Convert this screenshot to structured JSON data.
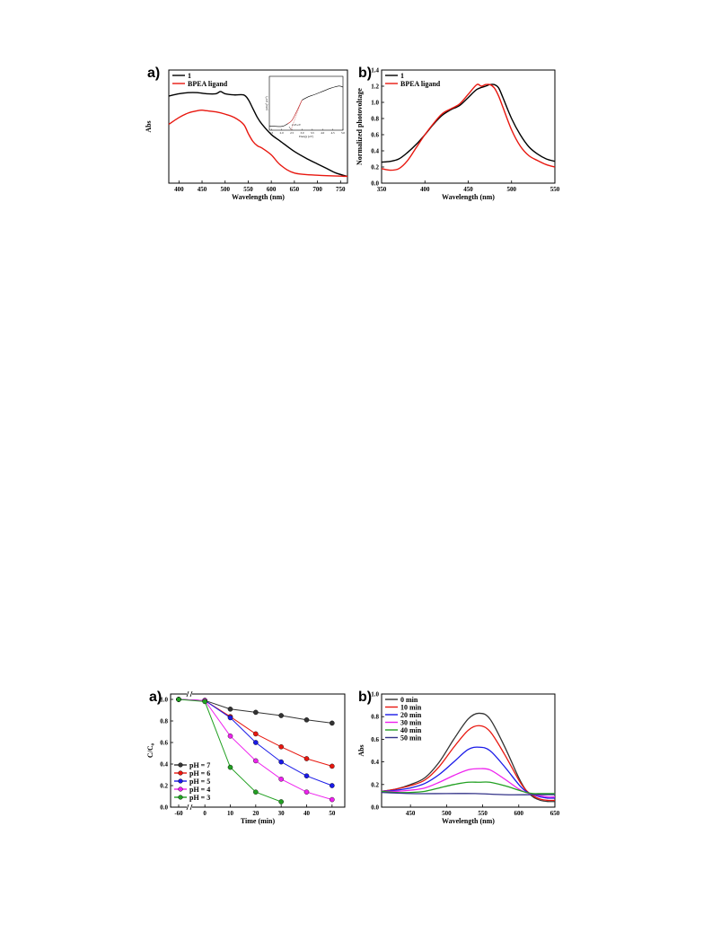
{
  "chart_data": [
    {
      "id": "fig1a",
      "panel_label": "a)",
      "type": "line",
      "xlabel": "Wavelength (nm)",
      "ylabel": "Abs",
      "xlim": [
        378,
        765
      ],
      "ylim": [
        0,
        1
      ],
      "xticks": [
        400,
        450,
        500,
        550,
        600,
        650,
        700,
        750
      ],
      "yticks": [],
      "legend_position": "top-left",
      "series": [
        {
          "name": "1",
          "color": "#000000",
          "x": [
            378,
            400,
            420,
            440,
            460,
            480,
            490,
            500,
            520,
            540,
            550,
            560,
            570,
            580,
            600,
            620,
            650,
            680,
            700,
            720,
            740,
            765
          ],
          "y": [
            0.77,
            0.79,
            0.8,
            0.8,
            0.79,
            0.79,
            0.81,
            0.79,
            0.78,
            0.78,
            0.74,
            0.66,
            0.58,
            0.52,
            0.43,
            0.37,
            0.28,
            0.21,
            0.17,
            0.13,
            0.09,
            0.06
          ]
        },
        {
          "name": "BPEA ligand",
          "color": "#e8170f",
          "x": [
            378,
            400,
            420,
            440,
            450,
            460,
            480,
            500,
            520,
            540,
            550,
            560,
            570,
            580,
            600,
            620,
            650,
            700,
            765
          ],
          "y": [
            0.52,
            0.58,
            0.62,
            0.64,
            0.645,
            0.64,
            0.63,
            0.61,
            0.58,
            0.52,
            0.44,
            0.37,
            0.33,
            0.31,
            0.25,
            0.16,
            0.09,
            0.07,
            0.06
          ]
        }
      ],
      "inset": {
        "xlabel": "Energy (eV)",
        "ylabel": "[αhν]² (eV²)",
        "annotation": "2.45 eV",
        "xticks": [
          "1.5",
          "2.0",
          "2.5",
          "3.0",
          "3.5",
          "4.0",
          "4.5",
          "5.0"
        ],
        "x": [
          1.4,
          2.0,
          2.3,
          2.5,
          2.7,
          3.0,
          3.3,
          3.6,
          4.0,
          4.4,
          4.8,
          5.0
        ],
        "y": [
          0.08,
          0.07,
          0.12,
          0.18,
          0.32,
          0.56,
          0.62,
          0.66,
          0.72,
          0.78,
          0.82,
          0.8
        ]
      }
    },
    {
      "id": "fig1b",
      "panel_label": "b)",
      "type": "line",
      "xlabel": "Wavelength (nm)",
      "ylabel": "Normalized photovoltage",
      "xlim": [
        350,
        550
      ],
      "ylim": [
        0,
        1.4
      ],
      "xticks": [
        350,
        400,
        450,
        500,
        550
      ],
      "yticks": [
        0.0,
        0.2,
        0.4,
        0.6,
        0.8,
        1.0,
        1.2,
        1.4
      ],
      "legend_position": "top-left",
      "series": [
        {
          "name": "1",
          "color": "#000000",
          "x": [
            350,
            360,
            370,
            380,
            390,
            400,
            410,
            420,
            430,
            440,
            450,
            460,
            470,
            475,
            480,
            485,
            490,
            500,
            510,
            520,
            530,
            540,
            550
          ],
          "y": [
            0.26,
            0.27,
            0.3,
            0.38,
            0.48,
            0.6,
            0.73,
            0.84,
            0.91,
            0.96,
            1.06,
            1.16,
            1.2,
            1.22,
            1.22,
            1.18,
            1.06,
            0.8,
            0.6,
            0.45,
            0.36,
            0.3,
            0.27
          ]
        },
        {
          "name": "BPEA ligand",
          "color": "#e8170f",
          "x": [
            350,
            360,
            370,
            380,
            390,
            400,
            410,
            420,
            430,
            440,
            450,
            460,
            465,
            470,
            475,
            480,
            485,
            490,
            500,
            510,
            520,
            530,
            540,
            550
          ],
          "y": [
            0.18,
            0.16,
            0.18,
            0.28,
            0.44,
            0.6,
            0.74,
            0.86,
            0.92,
            0.98,
            1.1,
            1.22,
            1.2,
            1.22,
            1.22,
            1.18,
            1.08,
            0.94,
            0.66,
            0.46,
            0.34,
            0.28,
            0.23,
            0.2
          ]
        }
      ]
    },
    {
      "id": "fig2a",
      "panel_label": "a)",
      "type": "line",
      "xlabel": "Time (min)",
      "ylabel": "C/C₀",
      "xlim": [
        -70,
        55
      ],
      "ylim": [
        0,
        1.05
      ],
      "xticks": [
        -60,
        0,
        10,
        20,
        30,
        40,
        50
      ],
      "yticks": [
        0.0,
        0.2,
        0.4,
        0.6,
        0.8,
        1.0
      ],
      "axis_break": "//",
      "legend_position": "bottom-left",
      "series": [
        {
          "name": "pH = 7",
          "color": "#333333",
          "x": [
            -60,
            0,
            10,
            20,
            30,
            40,
            50
          ],
          "y": [
            1.0,
            0.99,
            0.91,
            0.88,
            0.85,
            0.81,
            0.78
          ]
        },
        {
          "name": "pH = 6",
          "color": "#e8170f",
          "x": [
            -60,
            0,
            10,
            20,
            30,
            40,
            50
          ],
          "y": [
            1.0,
            0.99,
            0.84,
            0.68,
            0.56,
            0.45,
            0.38
          ]
        },
        {
          "name": "pH = 5",
          "color": "#1a1ae8",
          "x": [
            -60,
            0,
            10,
            20,
            30,
            40,
            50
          ],
          "y": [
            1.0,
            0.99,
            0.83,
            0.6,
            0.42,
            0.29,
            0.2
          ]
        },
        {
          "name": "pH = 4",
          "color": "#ee22ee",
          "x": [
            -60,
            0,
            10,
            20,
            30,
            40,
            50
          ],
          "y": [
            1.0,
            0.99,
            0.66,
            0.43,
            0.26,
            0.14,
            0.07
          ]
        },
        {
          "name": "pH = 3",
          "color": "#22a022",
          "x": [
            -60,
            0,
            10,
            20,
            30
          ],
          "y": [
            1.0,
            0.98,
            0.37,
            0.14,
            0.05
          ]
        }
      ]
    },
    {
      "id": "fig2b",
      "panel_label": "b)",
      "type": "line",
      "xlabel": "Wavelength (nm)",
      "ylabel": "Abs",
      "xlim": [
        410,
        650
      ],
      "ylim": [
        0,
        1.0
      ],
      "xticks": [
        450,
        500,
        550,
        600,
        650
      ],
      "yticks": [
        0.0,
        0.2,
        0.4,
        0.6,
        0.8,
        1.0
      ],
      "legend_position": "top-left",
      "series": [
        {
          "name": "0 min",
          "color": "#333333",
          "x": [
            410,
            430,
            450,
            470,
            490,
            510,
            530,
            545,
            560,
            580,
            600,
            610,
            620,
            630,
            640,
            650
          ],
          "y": [
            0.14,
            0.16,
            0.2,
            0.26,
            0.4,
            0.6,
            0.78,
            0.83,
            0.78,
            0.54,
            0.26,
            0.15,
            0.09,
            0.06,
            0.05,
            0.05
          ]
        },
        {
          "name": "10 min",
          "color": "#e8170f",
          "x": [
            410,
            430,
            450,
            470,
            490,
            510,
            530,
            545,
            560,
            580,
            600,
            610,
            620,
            630,
            640,
            650
          ],
          "y": [
            0.14,
            0.16,
            0.19,
            0.24,
            0.36,
            0.53,
            0.68,
            0.72,
            0.67,
            0.47,
            0.24,
            0.15,
            0.1,
            0.07,
            0.06,
            0.06
          ]
        },
        {
          "name": "20 min",
          "color": "#1a1ae8",
          "x": [
            410,
            430,
            450,
            470,
            490,
            510,
            530,
            545,
            560,
            580,
            600,
            610,
            620,
            630,
            640,
            650
          ],
          "y": [
            0.14,
            0.15,
            0.17,
            0.21,
            0.29,
            0.4,
            0.51,
            0.53,
            0.5,
            0.36,
            0.2,
            0.14,
            0.11,
            0.09,
            0.08,
            0.08
          ]
        },
        {
          "name": "30 min",
          "color": "#ee22ee",
          "x": [
            410,
            430,
            450,
            470,
            490,
            510,
            530,
            545,
            560,
            580,
            600,
            610,
            620,
            630,
            640,
            650
          ],
          "y": [
            0.14,
            0.14,
            0.15,
            0.17,
            0.22,
            0.28,
            0.33,
            0.34,
            0.33,
            0.25,
            0.16,
            0.13,
            0.11,
            0.1,
            0.09,
            0.09
          ]
        },
        {
          "name": "40 min",
          "color": "#22a022",
          "x": [
            410,
            430,
            450,
            470,
            490,
            510,
            530,
            545,
            560,
            580,
            600,
            610,
            620,
            630,
            640,
            650
          ],
          "y": [
            0.14,
            0.13,
            0.13,
            0.14,
            0.17,
            0.2,
            0.22,
            0.22,
            0.22,
            0.19,
            0.15,
            0.13,
            0.12,
            0.12,
            0.12,
            0.12
          ]
        },
        {
          "name": "50 min",
          "color": "#333388",
          "x": [
            410,
            450,
            500,
            540,
            580,
            620,
            650
          ],
          "y": [
            0.13,
            0.12,
            0.12,
            0.12,
            0.11,
            0.11,
            0.11
          ]
        }
      ]
    }
  ]
}
